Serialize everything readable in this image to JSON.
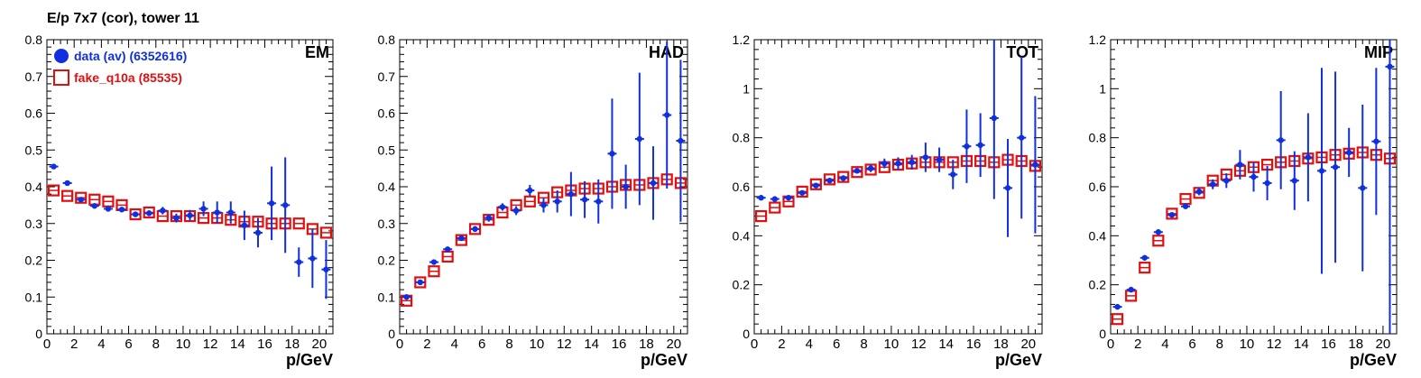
{
  "page": {
    "title": "E/p 7x7 (cor), tower 11"
  },
  "colors": {
    "data": "#1030e0",
    "fake": "#e01010",
    "axis": "#000000"
  },
  "legend": {
    "data_label": "data (av) (6352616)",
    "fake_label": "fake_q10a (85535)"
  },
  "chart_data": [
    {
      "type": "scatter",
      "title": "EM",
      "xlabel": "p/GeV",
      "ylabel": "",
      "xlim": [
        0,
        21
      ],
      "ylim": [
        0,
        0.8
      ],
      "xticks": [
        0,
        2,
        4,
        6,
        8,
        10,
        12,
        14,
        16,
        18,
        20
      ],
      "yticks": [
        0,
        0.1,
        0.2,
        0.3,
        0.4,
        0.5,
        0.6,
        0.7,
        0.8
      ],
      "ytick_labels": [
        "0",
        "0.1",
        "0.2",
        "0.3",
        "0.4",
        "0.5",
        "0.6",
        "0.7",
        "0.8"
      ],
      "legend_position": "top-left",
      "series": [
        {
          "name": "data (av) (6352616)",
          "marker": "filled-circle",
          "x": [
            0.5,
            1.5,
            2.5,
            3.5,
            4.5,
            5.5,
            6.5,
            7.5,
            8.5,
            9.5,
            10.5,
            11.5,
            12.5,
            13.5,
            14.5,
            15.5,
            16.5,
            17.5,
            18.5,
            19.5,
            20.5
          ],
          "y": [
            0.455,
            0.41,
            0.365,
            0.348,
            0.34,
            0.338,
            0.325,
            0.328,
            0.335,
            0.315,
            0.322,
            0.34,
            0.33,
            0.33,
            0.295,
            0.275,
            0.355,
            0.35,
            0.195,
            0.205,
            0.175
          ],
          "yerr": [
            0.005,
            0.005,
            0.005,
            0.005,
            0.005,
            0.006,
            0.007,
            0.008,
            0.01,
            0.012,
            0.015,
            0.02,
            0.03,
            0.03,
            0.04,
            0.04,
            0.1,
            0.13,
            0.04,
            0.08,
            0.08
          ]
        },
        {
          "name": "fake_q10a (85535)",
          "marker": "open-square",
          "x": [
            0.5,
            1.5,
            2.5,
            3.5,
            4.5,
            5.5,
            6.5,
            7.5,
            8.5,
            9.5,
            10.5,
            11.5,
            12.5,
            13.5,
            14.5,
            15.5,
            16.5,
            17.5,
            18.5,
            19.5,
            20.5
          ],
          "y": [
            0.39,
            0.375,
            0.37,
            0.365,
            0.36,
            0.35,
            0.325,
            0.33,
            0.32,
            0.32,
            0.32,
            0.315,
            0.315,
            0.31,
            0.305,
            0.305,
            0.3,
            0.3,
            0.3,
            0.285,
            0.275
          ]
        }
      ]
    },
    {
      "type": "scatter",
      "title": "HAD",
      "xlabel": "p/GeV",
      "ylabel": "",
      "xlim": [
        0,
        21
      ],
      "ylim": [
        0,
        0.8
      ],
      "xticks": [
        0,
        2,
        4,
        6,
        8,
        10,
        12,
        14,
        16,
        18,
        20
      ],
      "yticks": [
        0,
        0.1,
        0.2,
        0.3,
        0.4,
        0.5,
        0.6,
        0.7,
        0.8
      ],
      "ytick_labels": [
        "0",
        "0.1",
        "0.2",
        "0.3",
        "0.4",
        "0.5",
        "0.6",
        "0.7",
        "0.8"
      ],
      "series": [
        {
          "name": "data (av) (6352616)",
          "marker": "filled-circle",
          "x": [
            0.5,
            1.5,
            2.5,
            3.5,
            4.5,
            5.5,
            6.5,
            7.5,
            8.5,
            9.5,
            10.5,
            11.5,
            12.5,
            13.5,
            14.5,
            15.5,
            16.5,
            17.5,
            18.5,
            19.5,
            20.5
          ],
          "y": [
            0.1,
            0.14,
            0.195,
            0.23,
            0.26,
            0.285,
            0.315,
            0.345,
            0.335,
            0.39,
            0.35,
            0.36,
            0.38,
            0.365,
            0.36,
            0.49,
            0.4,
            0.53,
            0.41,
            0.595,
            0.525
          ],
          "yerr": [
            0.005,
            0.005,
            0.005,
            0.005,
            0.006,
            0.008,
            0.01,
            0.01,
            0.012,
            0.015,
            0.02,
            0.03,
            0.06,
            0.05,
            0.06,
            0.15,
            0.06,
            0.18,
            0.1,
            0.2,
            0.22
          ]
        },
        {
          "name": "fake_q10a (85535)",
          "marker": "open-square",
          "x": [
            0.5,
            1.5,
            2.5,
            3.5,
            4.5,
            5.5,
            6.5,
            7.5,
            8.5,
            9.5,
            10.5,
            11.5,
            12.5,
            13.5,
            14.5,
            15.5,
            16.5,
            17.5,
            18.5,
            19.5,
            20.5
          ],
          "y": [
            0.09,
            0.14,
            0.17,
            0.21,
            0.255,
            0.285,
            0.31,
            0.33,
            0.35,
            0.36,
            0.37,
            0.385,
            0.39,
            0.395,
            0.395,
            0.4,
            0.405,
            0.405,
            0.41,
            0.42,
            0.41
          ]
        }
      ]
    },
    {
      "type": "scatter",
      "title": "TOT",
      "xlabel": "p/GeV",
      "ylabel": "",
      "xlim": [
        0,
        21
      ],
      "ylim": [
        0,
        1.2
      ],
      "xticks": [
        0,
        2,
        4,
        6,
        8,
        10,
        12,
        14,
        16,
        18,
        20
      ],
      "yticks": [
        0,
        0.2,
        0.4,
        0.6,
        0.8,
        1.0,
        1.2
      ],
      "ytick_labels": [
        "0",
        "0.2",
        "0.4",
        "0.6",
        "0.8",
        "1",
        "1.2"
      ],
      "series": [
        {
          "name": "data (av) (6352616)",
          "marker": "filled-circle",
          "x": [
            0.5,
            1.5,
            2.5,
            3.5,
            4.5,
            5.5,
            6.5,
            7.5,
            8.5,
            9.5,
            10.5,
            11.5,
            12.5,
            13.5,
            14.5,
            15.5,
            16.5,
            17.5,
            18.5,
            19.5,
            20.5
          ],
          "y": [
            0.555,
            0.55,
            0.555,
            0.575,
            0.605,
            0.625,
            0.635,
            0.665,
            0.675,
            0.695,
            0.695,
            0.7,
            0.72,
            0.71,
            0.65,
            0.765,
            0.77,
            0.88,
            0.595,
            0.8,
            0.69
          ],
          "yerr": [
            0.005,
            0.005,
            0.005,
            0.005,
            0.006,
            0.008,
            0.01,
            0.01,
            0.015,
            0.02,
            0.025,
            0.03,
            0.06,
            0.05,
            0.06,
            0.15,
            0.13,
            0.33,
            0.2,
            0.33,
            0.28
          ]
        },
        {
          "name": "fake_q10a (85535)",
          "marker": "open-square",
          "x": [
            0.5,
            1.5,
            2.5,
            3.5,
            4.5,
            5.5,
            6.5,
            7.5,
            8.5,
            9.5,
            10.5,
            11.5,
            12.5,
            13.5,
            14.5,
            15.5,
            16.5,
            17.5,
            18.5,
            19.5,
            20.5
          ],
          "y": [
            0.48,
            0.515,
            0.54,
            0.58,
            0.61,
            0.63,
            0.64,
            0.66,
            0.67,
            0.68,
            0.69,
            0.695,
            0.7,
            0.7,
            0.7,
            0.705,
            0.705,
            0.7,
            0.71,
            0.705,
            0.685
          ]
        }
      ]
    },
    {
      "type": "scatter",
      "title": "MIP",
      "xlabel": "p/GeV",
      "ylabel": "",
      "xlim": [
        0,
        21
      ],
      "ylim": [
        0,
        1.2
      ],
      "xticks": [
        0,
        2,
        4,
        6,
        8,
        10,
        12,
        14,
        16,
        18,
        20
      ],
      "yticks": [
        0,
        0.2,
        0.4,
        0.6,
        0.8,
        1.0,
        1.2
      ],
      "ytick_labels": [
        "0",
        "0.2",
        "0.4",
        "0.6",
        "0.8",
        "1",
        "1.2"
      ],
      "series": [
        {
          "name": "data (av) (6352616)",
          "marker": "filled-circle",
          "x": [
            0.5,
            1.5,
            2.5,
            3.5,
            4.5,
            5.5,
            6.5,
            7.5,
            8.5,
            9.5,
            10.5,
            11.5,
            12.5,
            13.5,
            14.5,
            15.5,
            16.5,
            17.5,
            18.5,
            19.5,
            20.5
          ],
          "y": [
            0.11,
            0.18,
            0.31,
            0.415,
            0.485,
            0.52,
            0.58,
            0.61,
            0.625,
            0.69,
            0.64,
            0.615,
            0.79,
            0.625,
            0.72,
            0.665,
            0.68,
            0.74,
            0.595,
            0.785,
            1.09
          ],
          "yerr": [
            0.005,
            0.005,
            0.006,
            0.008,
            0.01,
            0.01,
            0.015,
            0.02,
            0.03,
            0.06,
            0.06,
            0.07,
            0.2,
            0.12,
            0.18,
            0.42,
            0.39,
            0.1,
            0.34,
            0.3,
            1.1
          ]
        },
        {
          "name": "fake_q10a (85535)",
          "marker": "open-square",
          "x": [
            0.5,
            1.5,
            2.5,
            3.5,
            4.5,
            5.5,
            6.5,
            7.5,
            8.5,
            9.5,
            10.5,
            11.5,
            12.5,
            13.5,
            14.5,
            15.5,
            16.5,
            17.5,
            18.5,
            19.5,
            20.5
          ],
          "y": [
            0.06,
            0.155,
            0.27,
            0.38,
            0.49,
            0.55,
            0.575,
            0.625,
            0.65,
            0.665,
            0.68,
            0.69,
            0.7,
            0.705,
            0.715,
            0.72,
            0.73,
            0.735,
            0.74,
            0.73,
            0.715
          ]
        }
      ]
    }
  ]
}
